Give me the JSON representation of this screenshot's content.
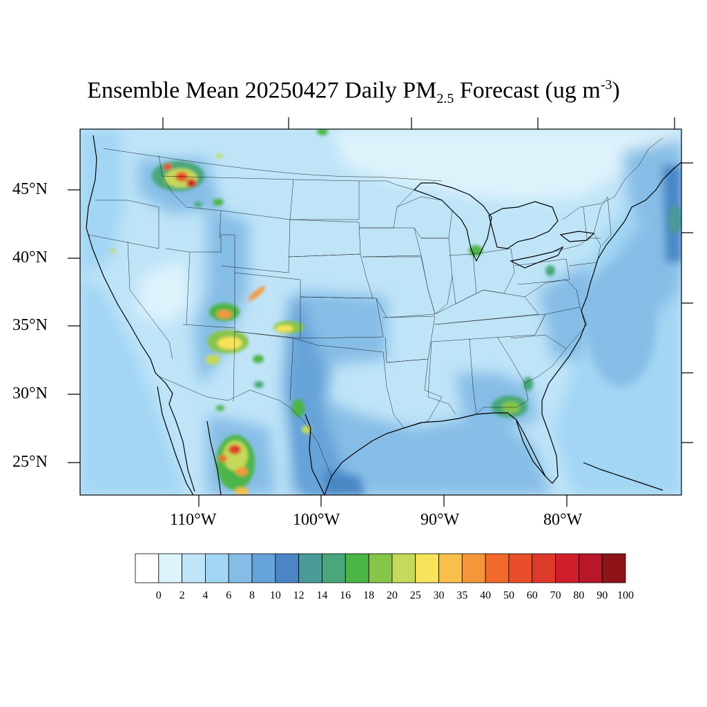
{
  "title": {
    "main": "Ensemble Mean 20250427 Daily PM",
    "sub": "2.5",
    "after": " Forecast (ug m",
    "sup": "-3",
    "close": ")"
  },
  "map": {
    "lat_labels": [
      "45°N",
      "40°N",
      "35°N",
      "30°N",
      "25°N"
    ],
    "lon_labels": [
      "110°W",
      "100°W",
      "90°W",
      "80°W"
    ],
    "background_color": "#bfe4f8",
    "ocean_color": "#8ec5ea",
    "colors": {
      "c2": "#dff3fc",
      "c4": "#bfe4f8",
      "c6": "#a2d6f4",
      "c8": "#86bde6",
      "c10": "#66a3d8",
      "c12": "#4a86c5",
      "c14": "#4a9a9a",
      "c16": "#4aa77a",
      "c18": "#4cb548",
      "c20": "#86c44a",
      "c25": "#c5d95a",
      "c30": "#f7e45a",
      "c35": "#f8bf4a",
      "c40": "#f6963a",
      "c50": "#f2692e",
      "c60": "#e84e2c",
      "c70": "#de3a2a",
      "c80": "#d01f2a",
      "c90": "#b8182a",
      "c100": "#8e1417"
    }
  },
  "colorbar": {
    "labels": [
      "0",
      "2",
      "4",
      "6",
      "8",
      "10",
      "12",
      "14",
      "16",
      "18",
      "20",
      "25",
      "30",
      "35",
      "40",
      "50",
      "60",
      "70",
      "80",
      "90",
      "100"
    ],
    "colors": [
      "#ffffff",
      "#dff3fc",
      "#bfe4f8",
      "#a2d6f4",
      "#86bde6",
      "#66a3d8",
      "#4a86c5",
      "#4a9a9a",
      "#4aa77a",
      "#4cb548",
      "#86c44a",
      "#c5d95a",
      "#f7e45a",
      "#f8bf4a",
      "#f6963a",
      "#f2692e",
      "#e84e2c",
      "#de3a2a",
      "#d01f2a",
      "#b8182a",
      "#8e1417"
    ]
  }
}
